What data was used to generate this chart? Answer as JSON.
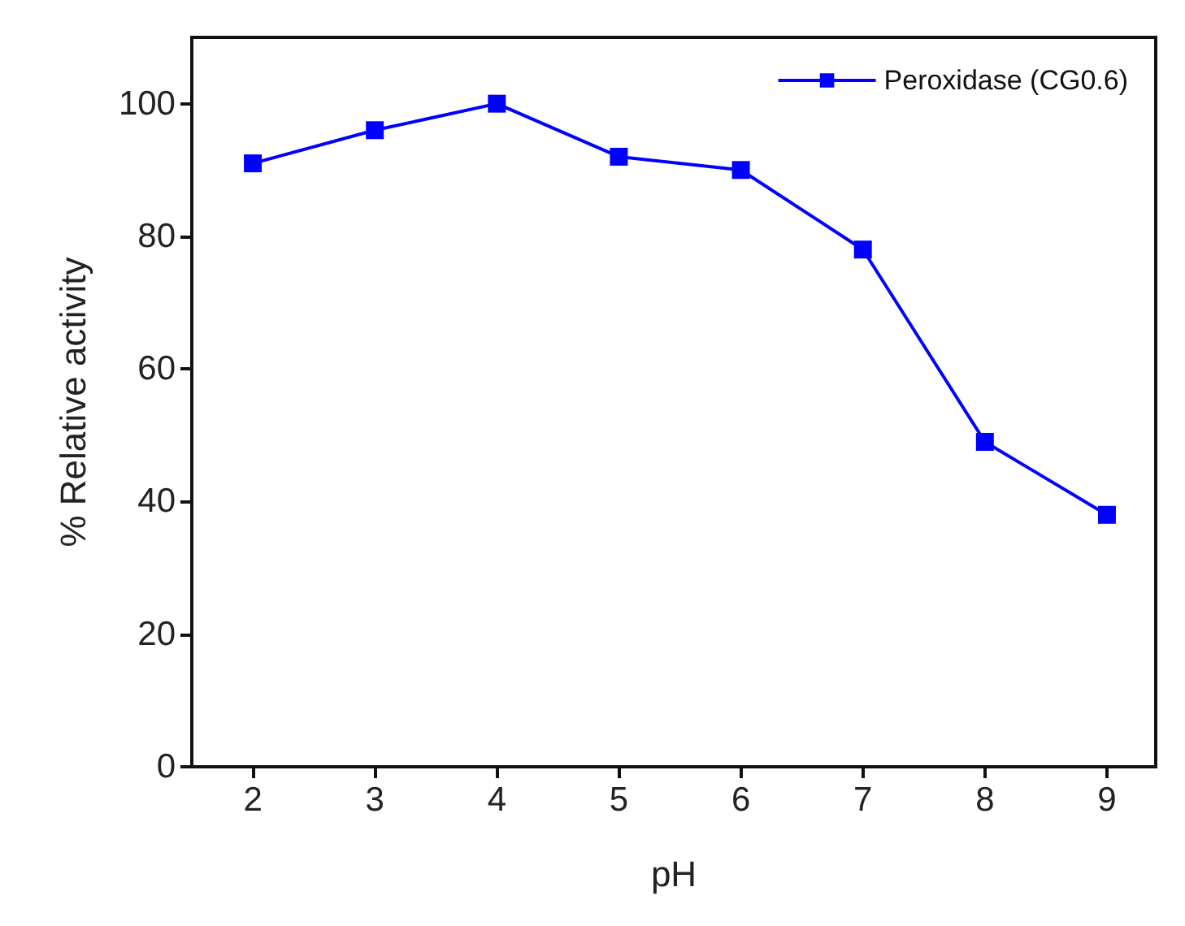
{
  "chart_data": {
    "type": "line",
    "xlabel": "pH",
    "ylabel": "% Relative activity",
    "x": [
      2,
      3,
      4,
      5,
      6,
      7,
      8,
      9
    ],
    "series": [
      {
        "name": "Peroxidase (CG0.6)",
        "color": "#0000ff",
        "values": [
          91,
          96,
          100,
          92,
          90,
          78,
          49,
          38
        ]
      }
    ],
    "xlim": [
      1.5,
      9.4
    ],
    "xticks": [
      2,
      3,
      4,
      5,
      6,
      7,
      8,
      9
    ],
    "ylim": [
      0,
      110
    ],
    "yticks": [
      0,
      20,
      40,
      60,
      80,
      100
    ],
    "grid": false,
    "legend": "top right",
    "marker": "square",
    "line_style": "solid"
  }
}
